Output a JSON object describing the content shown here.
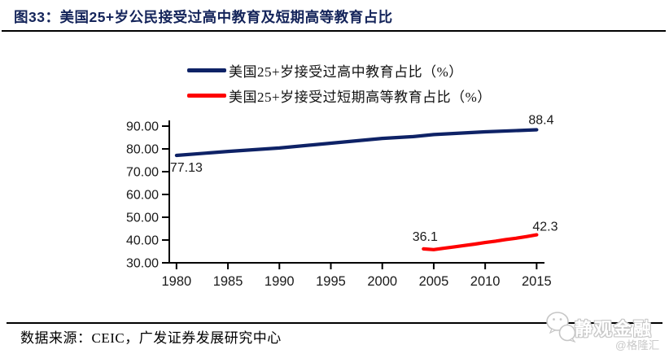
{
  "header": {
    "title": "图33：美国25+岁公民接受过高中教育及短期高等教育占比"
  },
  "chart_data": {
    "type": "line",
    "title": "美国25+岁公民接受过高中教育及短期高等教育占比",
    "xlabel": "",
    "ylabel": "",
    "grid": false,
    "legend_position": "top",
    "xlim": [
      1979.3,
      2016.0
    ],
    "ylim": [
      30,
      90
    ],
    "x_ticks": [
      1980,
      1985,
      1990,
      1995,
      2000,
      2005,
      2010,
      2015
    ],
    "y_ticks": [
      90,
      80,
      70,
      60,
      50,
      40,
      30
    ],
    "y_tick_labels": [
      "90.00",
      "80.00",
      "70.00",
      "60.00",
      "50.00",
      "40.00",
      "30.00"
    ],
    "series": [
      {
        "name": "美国25+岁接受过高中教育占比（%）",
        "color": "#0e2266",
        "x": [
          1980,
          1985,
          1990,
          1995,
          2000,
          2003,
          2005,
          2010,
          2015
        ],
        "values": [
          77.13,
          78.9,
          80.4,
          82.5,
          84.6,
          85.4,
          86.3,
          87.5,
          88.4
        ],
        "endpoint_labels": {
          "first": "77.13",
          "last": "88.4"
        }
      },
      {
        "name": "美国25+岁接受过短期高等教育占比（%）",
        "color": "#fe0000",
        "x": [
          2004,
          2005,
          2006,
          2007,
          2008,
          2009,
          2010,
          2011,
          2012,
          2013,
          2014,
          2015
        ],
        "values": [
          36.1,
          35.8,
          36.4,
          37.0,
          37.6,
          38.2,
          38.9,
          39.5,
          40.2,
          40.8,
          41.5,
          42.3
        ],
        "endpoint_labels": {
          "first": "36.1",
          "last": "42.3"
        }
      }
    ],
    "axis_color": "#000000",
    "tick_label_color": "#1a1a1a",
    "data_label_color": "#1a1a1a"
  },
  "footer": {
    "source": "数据来源：CEIC，广发证券发展研究中心"
  },
  "watermark": {
    "logo": "wechat-bubbles-icon",
    "brand": "静观金融",
    "handle": "@格隆汇"
  }
}
